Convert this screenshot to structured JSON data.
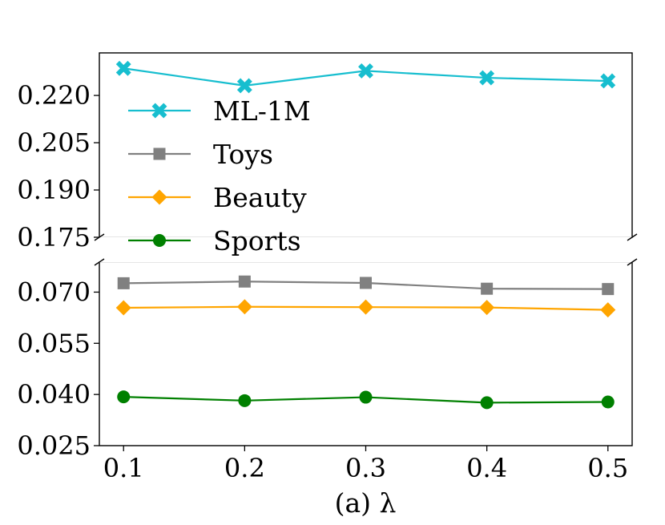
{
  "chart_data": {
    "type": "line",
    "xlabel": "(a) λ",
    "x": [
      0.1,
      0.2,
      0.3,
      0.4,
      0.5
    ],
    "x_tick_labels": [
      "0.1",
      "0.2",
      "0.3",
      "0.4",
      "0.5"
    ],
    "broken_y_axis": true,
    "y_axis_upper": {
      "ylim": [
        0.175,
        0.2335
      ],
      "ticks": [
        0.175,
        0.19,
        0.205,
        0.22
      ],
      "tick_labels": [
        "0.175",
        "0.190",
        "0.205",
        "0.220"
      ]
    },
    "y_axis_lower": {
      "ylim": [
        0.025,
        0.0788
      ],
      "ticks": [
        0.025,
        0.04,
        0.055,
        0.07
      ],
      "tick_labels": [
        "0.025",
        "0.040",
        "0.055",
        "0.070"
      ]
    },
    "series": [
      {
        "name": "ML-1M",
        "axis": "upper",
        "color": "#17becf",
        "marker": "x",
        "values": [
          0.2286,
          0.2231,
          0.2278,
          0.2256,
          0.2246
        ]
      },
      {
        "name": "Toys",
        "axis": "lower",
        "color": "#808080",
        "marker": "square",
        "values": [
          0.0726,
          0.0731,
          0.0727,
          0.071,
          0.0709
        ]
      },
      {
        "name": "Beauty",
        "axis": "lower",
        "color": "#ffa500",
        "marker": "diamond",
        "values": [
          0.0654,
          0.0657,
          0.0656,
          0.0655,
          0.0648
        ]
      },
      {
        "name": "Sports",
        "axis": "lower",
        "color": "#008000",
        "marker": "circle",
        "values": [
          0.0393,
          0.0382,
          0.0392,
          0.0376,
          0.0378
        ]
      }
    ],
    "legend_position": "upper-left",
    "grid": false
  }
}
